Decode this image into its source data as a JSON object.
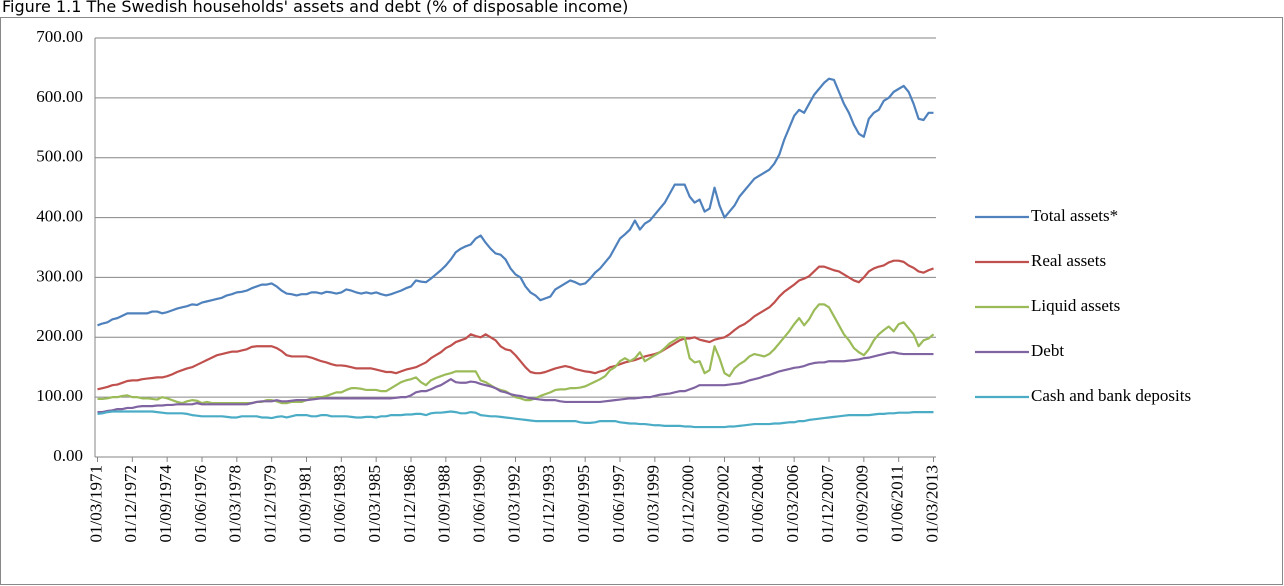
{
  "chart_data": {
    "type": "line",
    "title": "Figure 1.1 The Swedish households' assets and debt (% of disposable income)",
    "categories": [
      "01/03/1971",
      null,
      null,
      null,
      null,
      null,
      null,
      "01/12/1972",
      null,
      null,
      null,
      null,
      null,
      null,
      "01/09/1974",
      null,
      null,
      null,
      null,
      null,
      null,
      "01/06/1976",
      null,
      null,
      null,
      null,
      null,
      null,
      "01/03/1978",
      null,
      null,
      null,
      null,
      null,
      null,
      "01/12/1979",
      null,
      null,
      null,
      null,
      null,
      null,
      "01/09/1981",
      null,
      null,
      null,
      null,
      null,
      null,
      "01/06/1983",
      null,
      null,
      null,
      null,
      null,
      null,
      "01/03/1985",
      null,
      null,
      null,
      null,
      null,
      null,
      "01/12/1986",
      null,
      null,
      null,
      null,
      null,
      null,
      "01/09/1988",
      null,
      null,
      null,
      null,
      null,
      null,
      "01/06/1990",
      null,
      null,
      null,
      null,
      null,
      null,
      "01/03/1992",
      null,
      null,
      null,
      null,
      null,
      null,
      "01/12/1993",
      null,
      null,
      null,
      null,
      null,
      null,
      "01/09/1995",
      null,
      null,
      null,
      null,
      null,
      null,
      "01/06/1997",
      null,
      null,
      null,
      null,
      null,
      null,
      "01/03/1999",
      null,
      null,
      null,
      null,
      null,
      null,
      "01/12/2000",
      null,
      null,
      null,
      null,
      null,
      null,
      "01/09/2002",
      null,
      null,
      null,
      null,
      null,
      null,
      "01/06/2004",
      null,
      null,
      null,
      null,
      null,
      null,
      "01/03/2006",
      null,
      null,
      null,
      null,
      null,
      null,
      "01/12/2007",
      null,
      null,
      null,
      null,
      null,
      null,
      "01/09/2009",
      null,
      null,
      null,
      null,
      null,
      null,
      "01/06/2011",
      null,
      null,
      null,
      null,
      null,
      null,
      "01/03/2013"
    ],
    "series": [
      {
        "name": "Total assets*",
        "color": "#4f81bd",
        "values": [
          220,
          223,
          225,
          230,
          232,
          236,
          240,
          240,
          240,
          240,
          240,
          243,
          243,
          240,
          242,
          245,
          248,
          250,
          252,
          255,
          254,
          258,
          260,
          262,
          264,
          266,
          270,
          272,
          275,
          276,
          278,
          282,
          285,
          288,
          288,
          290,
          285,
          278,
          273,
          272,
          270,
          272,
          272,
          275,
          275,
          273,
          276,
          275,
          273,
          275,
          280,
          278,
          275,
          273,
          275,
          273,
          275,
          272,
          270,
          272,
          275,
          278,
          282,
          285,
          295,
          293,
          292,
          298,
          305,
          312,
          320,
          330,
          342,
          348,
          352,
          355,
          365,
          370,
          358,
          348,
          340,
          338,
          330,
          315,
          305,
          300,
          285,
          275,
          270,
          262,
          265,
          268,
          280,
          285,
          290,
          295,
          292,
          288,
          290,
          298,
          308,
          315,
          325,
          335,
          350,
          365,
          372,
          380,
          395,
          380,
          390,
          395,
          405,
          415,
          425,
          440,
          455,
          455,
          455,
          435,
          425,
          430,
          410,
          415,
          450,
          420,
          400,
          410,
          420,
          435,
          445,
          455,
          465,
          470,
          475,
          480,
          490,
          505,
          530,
          550,
          570,
          580,
          575,
          590,
          605,
          615,
          625,
          632,
          630,
          610,
          590,
          575,
          555,
          540,
          535,
          565,
          575,
          580,
          595,
          600,
          610,
          615,
          620,
          610,
          590,
          565,
          563,
          575,
          575
        ]
      },
      {
        "name": "Real assets",
        "color": "#c0504d",
        "values": [
          113,
          115,
          117,
          120,
          121,
          124,
          127,
          128,
          128,
          130,
          131,
          132,
          133,
          133,
          135,
          138,
          142,
          145,
          148,
          150,
          154,
          158,
          162,
          166,
          170,
          172,
          174,
          176,
          176,
          178,
          180,
          184,
          185,
          185,
          185,
          185,
          182,
          177,
          170,
          168,
          168,
          168,
          168,
          166,
          163,
          160,
          158,
          155,
          153,
          153,
          152,
          150,
          148,
          148,
          148,
          148,
          146,
          144,
          142,
          142,
          140,
          143,
          146,
          148,
          150,
          154,
          158,
          165,
          170,
          175,
          182,
          186,
          192,
          195,
          198,
          205,
          202,
          200,
          205,
          200,
          195,
          185,
          180,
          178,
          170,
          160,
          150,
          142,
          140,
          140,
          142,
          145,
          148,
          150,
          152,
          150,
          147,
          145,
          143,
          142,
          140,
          143,
          145,
          150,
          152,
          155,
          158,
          160,
          162,
          165,
          168,
          170,
          172,
          175,
          180,
          185,
          190,
          195,
          198,
          198,
          200,
          196,
          194,
          192,
          196,
          198,
          200,
          205,
          212,
          218,
          222,
          228,
          235,
          240,
          245,
          250,
          258,
          268,
          276,
          282,
          288,
          295,
          298,
          302,
          310,
          318,
          318,
          315,
          312,
          310,
          305,
          300,
          295,
          292,
          300,
          310,
          315,
          318,
          320,
          325,
          328,
          328,
          326,
          320,
          316,
          310,
          308,
          312,
          315
        ]
      },
      {
        "name": "Liquid assets",
        "color": "#9bbb59",
        "values": [
          97,
          97,
          98,
          100,
          100,
          102,
          103,
          100,
          100,
          98,
          98,
          97,
          96,
          100,
          98,
          95,
          92,
          90,
          93,
          95,
          94,
          90,
          92,
          90,
          90,
          90,
          90,
          90,
          90,
          90,
          90,
          90,
          92,
          92,
          95,
          95,
          93,
          90,
          90,
          92,
          92,
          92,
          95,
          98,
          100,
          100,
          102,
          105,
          108,
          108,
          112,
          115,
          115,
          114,
          112,
          112,
          112,
          110,
          110,
          115,
          120,
          125,
          128,
          130,
          133,
          125,
          120,
          128,
          132,
          135,
          138,
          140,
          143,
          143,
          143,
          143,
          143,
          128,
          125,
          120,
          115,
          112,
          110,
          105,
          100,
          98,
          95,
          95,
          98,
          102,
          105,
          108,
          112,
          113,
          113,
          115,
          115,
          116,
          118,
          122,
          126,
          130,
          135,
          145,
          150,
          160,
          165,
          160,
          165,
          175,
          160,
          165,
          170,
          175,
          182,
          190,
          195,
          200,
          200,
          165,
          158,
          160,
          140,
          145,
          185,
          165,
          140,
          135,
          148,
          155,
          160,
          168,
          172,
          170,
          168,
          172,
          180,
          190,
          200,
          210,
          222,
          232,
          220,
          230,
          245,
          255,
          255,
          250,
          235,
          220,
          205,
          195,
          182,
          175,
          170,
          180,
          195,
          205,
          212,
          218,
          210,
          222,
          225,
          215,
          205,
          185,
          195,
          198,
          205
        ]
      },
      {
        "name": "Debt",
        "color": "#8064a2",
        "values": [
          75,
          75,
          77,
          78,
          80,
          80,
          82,
          82,
          84,
          85,
          85,
          85,
          86,
          86,
          87,
          87,
          88,
          88,
          88,
          88,
          90,
          88,
          88,
          88,
          88,
          88,
          88,
          88,
          88,
          88,
          88,
          90,
          92,
          93,
          93,
          93,
          95,
          93,
          93,
          94,
          95,
          95,
          95,
          96,
          97,
          98,
          98,
          98,
          98,
          98,
          98,
          98,
          98,
          98,
          98,
          98,
          98,
          98,
          98,
          98,
          99,
          100,
          100,
          103,
          108,
          110,
          110,
          113,
          117,
          120,
          125,
          130,
          125,
          124,
          124,
          126,
          125,
          122,
          120,
          118,
          115,
          110,
          108,
          105,
          103,
          102,
          100,
          98,
          97,
          96,
          95,
          95,
          95,
          93,
          92,
          92,
          92,
          92,
          92,
          92,
          92,
          92,
          93,
          94,
          95,
          96,
          97,
          98,
          98,
          99,
          100,
          100,
          102,
          104,
          105,
          106,
          108,
          110,
          110,
          113,
          116,
          120,
          120,
          120,
          120,
          120,
          120,
          121,
          122,
          123,
          125,
          128,
          130,
          132,
          135,
          137,
          140,
          143,
          145,
          147,
          149,
          150,
          152,
          155,
          157,
          158,
          158,
          160,
          160,
          160,
          160,
          161,
          162,
          163,
          165,
          166,
          168,
          170,
          172,
          174,
          175,
          173,
          172,
          172,
          172,
          172,
          172,
          172,
          172
        ]
      },
      {
        "name": "Cash and bank deposits",
        "color": "#4bacc6",
        "values": [
          72,
          73,
          75,
          76,
          76,
          76,
          76,
          76,
          76,
          76,
          76,
          76,
          75,
          74,
          73,
          73,
          73,
          73,
          72,
          70,
          69,
          68,
          68,
          68,
          68,
          68,
          67,
          66,
          66,
          68,
          68,
          68,
          68,
          66,
          66,
          65,
          67,
          68,
          66,
          68,
          70,
          70,
          70,
          68,
          68,
          70,
          70,
          68,
          68,
          68,
          68,
          67,
          66,
          66,
          67,
          67,
          66,
          68,
          68,
          70,
          70,
          70,
          71,
          71,
          72,
          72,
          70,
          73,
          74,
          74,
          75,
          76,
          75,
          73,
          73,
          75,
          74,
          70,
          69,
          68,
          68,
          67,
          66,
          65,
          64,
          63,
          62,
          61,
          60,
          60,
          60,
          60,
          60,
          60,
          60,
          60,
          60,
          58,
          57,
          57,
          58,
          60,
          60,
          60,
          60,
          58,
          57,
          56,
          56,
          55,
          55,
          54,
          53,
          53,
          52,
          52,
          52,
          52,
          51,
          51,
          50,
          50,
          50,
          50,
          50,
          50,
          50,
          51,
          51,
          52,
          53,
          54,
          55,
          55,
          55,
          55,
          56,
          56,
          57,
          58,
          58,
          60,
          60,
          62,
          63,
          64,
          65,
          66,
          67,
          68,
          69,
          70,
          70,
          70,
          70,
          70,
          71,
          72,
          72,
          73,
          73,
          74,
          74,
          74,
          75,
          75,
          75,
          75,
          75
        ]
      }
    ],
    "ylim": [
      0,
      700
    ],
    "yticks": [
      {
        "value": 0,
        "label": "0.00"
      },
      {
        "value": 100,
        "label": "100.00"
      },
      {
        "value": 200,
        "label": "200.00"
      },
      {
        "value": 300,
        "label": "300.00"
      },
      {
        "value": 400,
        "label": "400.00"
      },
      {
        "value": 500,
        "label": "500.00"
      },
      {
        "value": 600,
        "label": "600.00"
      },
      {
        "value": 700,
        "label": "700.00"
      }
    ],
    "grid": true,
    "legend": "right"
  }
}
